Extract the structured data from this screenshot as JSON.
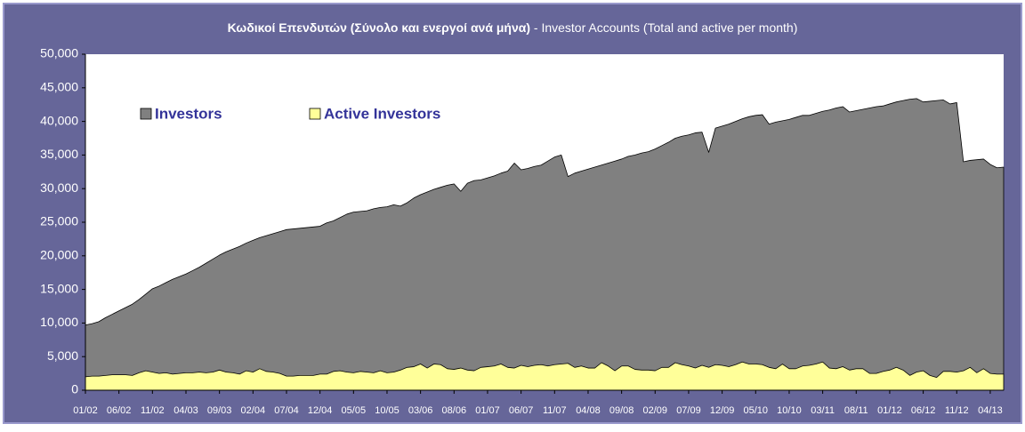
{
  "chart_data": {
    "type": "area",
    "title_parts": [
      "Κωδικοί Επενδυτών (Σύνολο και ενεργοί ανά μήνα)",
      " - Investor Accounts (Total and active per month)"
    ],
    "categories": [
      "01/02",
      null,
      null,
      null,
      null,
      "06/02",
      null,
      null,
      null,
      null,
      "11/02",
      null,
      null,
      null,
      null,
      "04/03",
      null,
      null,
      null,
      null,
      "09/03",
      null,
      null,
      null,
      null,
      "02/04",
      null,
      null,
      null,
      null,
      "07/04",
      null,
      null,
      null,
      null,
      "12/04",
      null,
      null,
      null,
      null,
      "05/05",
      null,
      null,
      null,
      null,
      "10/05",
      null,
      null,
      null,
      null,
      "03/06",
      null,
      null,
      null,
      null,
      "08/06",
      null,
      null,
      null,
      null,
      "01/07",
      null,
      null,
      null,
      null,
      "06/07",
      null,
      null,
      null,
      null,
      "11/07",
      null,
      null,
      null,
      null,
      "04/08",
      null,
      null,
      null,
      null,
      "09/08",
      null,
      null,
      null,
      null,
      "02/09",
      null,
      null,
      null,
      null,
      "07/09",
      null,
      null,
      null,
      null,
      "12/09",
      null,
      null,
      null,
      null,
      "05/10",
      null,
      null,
      null,
      null,
      "10/10",
      null,
      null,
      null,
      null,
      "03/11",
      null,
      null,
      null,
      null,
      "08/11",
      null,
      null,
      null,
      null,
      "01/12",
      null,
      null,
      null,
      null,
      "06/12",
      null,
      null,
      null,
      null,
      "11/12",
      null,
      null,
      null,
      null,
      "04/13",
      null,
      null
    ],
    "series": [
      {
        "name": "Investors",
        "color": "#808080",
        "values": [
          9700,
          9900,
          10200,
          10800,
          11300,
          11800,
          12300,
          12800,
          13500,
          14300,
          15100,
          15500,
          16000,
          16500,
          16900,
          17300,
          17800,
          18300,
          18900,
          19500,
          20100,
          20600,
          21000,
          21400,
          21900,
          22300,
          22700,
          23000,
          23300,
          23600,
          23900,
          24000,
          24100,
          24200,
          24300,
          24400,
          24900,
          25200,
          25700,
          26200,
          26500,
          26600,
          26700,
          27000,
          27200,
          27300,
          27600,
          27400,
          27900,
          28600,
          29100,
          29500,
          29900,
          30200,
          30500,
          30700,
          29600,
          30800,
          31200,
          31300,
          31600,
          31900,
          32300,
          32600,
          33800,
          32800,
          33000,
          33300,
          33500,
          34100,
          34700,
          35000,
          31800,
          32300,
          32600,
          32900,
          33200,
          33500,
          33800,
          34100,
          34400,
          34800,
          35000,
          35300,
          35500,
          35900,
          36400,
          36900,
          37500,
          37800,
          38000,
          38300,
          38400,
          35400,
          39000,
          39300,
          39600,
          40000,
          40400,
          40700,
          40900,
          41000,
          39600,
          39900,
          40100,
          40300,
          40600,
          40900,
          40900,
          41200,
          41500,
          41700,
          42000,
          42200,
          41400,
          41600,
          41800,
          42000,
          42200,
          42300,
          42600,
          42900,
          43100,
          43300,
          43400,
          42900,
          43000,
          43100,
          43200,
          42600,
          42800,
          34000,
          34200,
          34300,
          34400,
          33600,
          33100,
          33200
        ]
      },
      {
        "name": "Active Investors",
        "color": "#ffff99",
        "values": [
          2000,
          2100,
          2100,
          2200,
          2300,
          2300,
          2300,
          2200,
          2600,
          2900,
          2700,
          2500,
          2600,
          2400,
          2500,
          2600,
          2600,
          2700,
          2600,
          2700,
          3000,
          2700,
          2600,
          2400,
          2900,
          2700,
          3200,
          2800,
          2700,
          2500,
          2100,
          2100,
          2200,
          2200,
          2200,
          2400,
          2400,
          2800,
          2900,
          2700,
          2600,
          2800,
          2700,
          2600,
          2900,
          2600,
          2700,
          3000,
          3400,
          3500,
          3900,
          3300,
          3900,
          3800,
          3200,
          3100,
          3300,
          3000,
          2900,
          3400,
          3500,
          3600,
          3900,
          3400,
          3300,
          3700,
          3500,
          3700,
          3800,
          3600,
          3800,
          3900,
          4000,
          3400,
          3600,
          3300,
          3300,
          4100,
          3600,
          2900,
          3600,
          3600,
          3100,
          3000,
          3000,
          2900,
          3400,
          3400,
          4100,
          3800,
          3600,
          3300,
          3700,
          3400,
          3800,
          3700,
          3500,
          3800,
          4200,
          3900,
          3900,
          3800,
          3400,
          3200,
          3900,
          3200,
          3200,
          3600,
          3700,
          3900,
          4200,
          3300,
          3200,
          3500,
          3000,
          3200,
          3200,
          2500,
          2500,
          2800,
          3000,
          3400,
          3000,
          2200,
          2700,
          2900,
          2200,
          1900,
          2800,
          2800,
          2700,
          2900,
          3400,
          2600,
          3200,
          2500,
          2400,
          2400
        ]
      }
    ],
    "ylim": [
      0,
      50000
    ],
    "yticks": [
      0,
      {
        "value": 5000,
        "label": "5,000"
      },
      {
        "value": 10000,
        "label": "10,000"
      },
      {
        "value": 15000,
        "label": "15,000"
      },
      {
        "value": 20000,
        "label": "20,000"
      },
      {
        "value": 25000,
        "label": "25,000"
      },
      {
        "value": 30000,
        "label": "30,000"
      },
      {
        "value": 35000,
        "label": "35,000"
      },
      {
        "value": 40000,
        "label": "40,000"
      },
      {
        "value": 45000,
        "label": "45,000"
      },
      {
        "value": 50000,
        "label": "50,000"
      }
    ],
    "legend": "top-left",
    "grid": false
  }
}
